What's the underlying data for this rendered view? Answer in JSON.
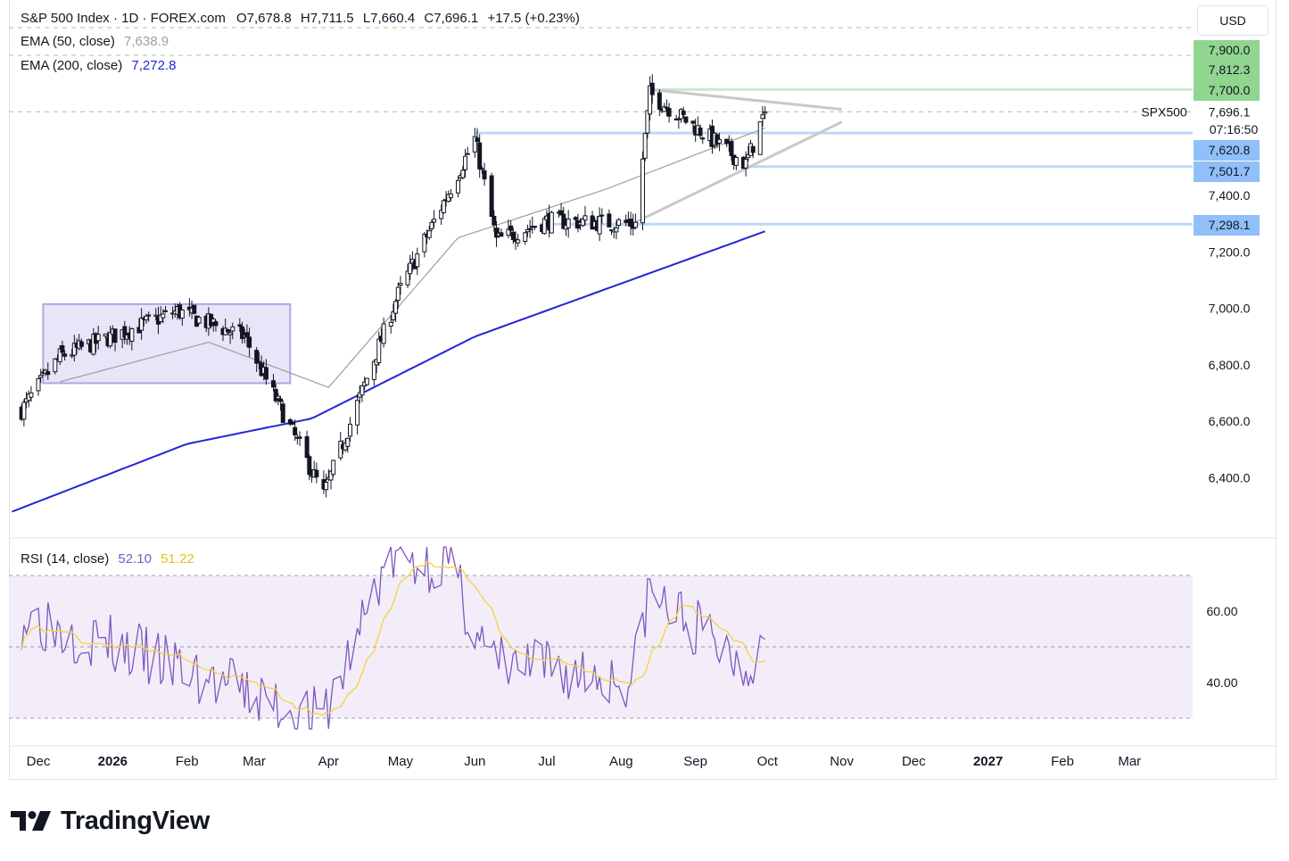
{
  "header": {
    "symbol": "S&P 500 Index · 1D · FOREX.com",
    "open": "O7,678.8",
    "high": "H7,711.5",
    "low": "L7,660.4",
    "close": "C7,696.1",
    "change": "+17.5 (+0.23%)",
    "ema50_label": "EMA (50, close)",
    "ema50_value": "7,638.9",
    "ema200_label": "EMA (200, close)",
    "ema200_value": "7,272.8",
    "rsi_label": "RSI (14, close)",
    "rsi_value": "52.10",
    "rsi_ma_value": "51.22",
    "currency_button": "USD"
  },
  "brand": {
    "name": "TradingView"
  },
  "colors": {
    "up": "#ffffff",
    "down": "#131722",
    "ema50": "#9e9e9e",
    "ema200": "#2424d8",
    "rsi": "#7e57c2",
    "rsi_ma": "#f5d33f",
    "resistance_tag": "#90d590",
    "support_tag": "#90bff9",
    "box": "#b2a5e6"
  },
  "chart_data": {
    "type": "candlestick",
    "x_ticks": [
      "Dec",
      "2026",
      "Feb",
      "Mar",
      "Apr",
      "May",
      "Jun",
      "Jul",
      "Aug",
      "Sep",
      "Oct",
      "Nov",
      "Dec",
      "2027",
      "Feb",
      "Mar"
    ],
    "price_ticks": [
      "7,400.0",
      "7,200.0",
      "7,000.0",
      "6,800.0",
      "6,600.0",
      "6,400.0"
    ],
    "price_axis_range": [
      6240,
      7940
    ],
    "last_price": {
      "label": "SPX500",
      "value": "7,696.1",
      "countdown": "07:16:50"
    },
    "levels": [
      {
        "value": 7900,
        "label": "7,900.0",
        "kind": "resistance"
      },
      {
        "value": 7812.3,
        "label": "7,812.3",
        "kind": "resistance"
      },
      {
        "value": 7700,
        "label": "7,700.0",
        "kind": "resistance"
      },
      {
        "value": 7620.8,
        "label": "7,620.8",
        "kind": "support"
      },
      {
        "value": 7501.7,
        "label": "7,501.7",
        "kind": "support"
      },
      {
        "value": 7298.1,
        "label": "7,298.1",
        "kind": "support"
      }
    ],
    "rsi_ticks": [
      "60.00",
      "40.00"
    ],
    "rsi_range": [
      25,
      80
    ],
    "rsi_bands": [
      70,
      50,
      30
    ],
    "key_points": [
      {
        "date": "Nov 24, 2025",
        "close": 6640
      },
      {
        "date": "Dec 10, 2025",
        "close": 6830
      },
      {
        "date": "Jan 28, 2026",
        "close": 6990
      },
      {
        "date": "Feb 25, 2026",
        "close": 6900
      },
      {
        "date": "Mar 30, 2026",
        "close": 6340
      },
      {
        "date": "Apr 30, 2026",
        "close": 7050
      },
      {
        "date": "Jun 01, 2026",
        "close": 7600
      },
      {
        "date": "Jun 10, 2026",
        "close": 7240
      },
      {
        "date": "Jul 01, 2026",
        "close": 7310
      },
      {
        "date": "Aug 07, 2026",
        "close": 7300
      },
      {
        "date": "Aug 13, 2026",
        "close": 7760
      },
      {
        "date": "Sep 22, 2026",
        "close": 7510
      },
      {
        "date": "Sep 30, 2026",
        "close": 7696.1
      }
    ],
    "ema50_points": [
      {
        "date": "Dec 10, 2025",
        "value": 6740
      },
      {
        "date": "Feb 10, 2026",
        "value": 6880
      },
      {
        "date": "Apr 01, 2026",
        "value": 6720
      },
      {
        "date": "May 25, 2026",
        "value": 7250
      },
      {
        "date": "Jul 25, 2026",
        "value": 7420
      },
      {
        "date": "Sep 30, 2026",
        "value": 7638.9
      }
    ],
    "ema200_points": [
      {
        "date": "Nov 20, 2025",
        "value": 6280
      },
      {
        "date": "Feb 01, 2026",
        "value": 6520
      },
      {
        "date": "Mar 25, 2026",
        "value": 6610
      },
      {
        "date": "Jun 01, 2026",
        "value": 6900
      },
      {
        "date": "Sep 30, 2026",
        "value": 7272.8
      }
    ],
    "rsi_points": [
      {
        "date": "Dec 01, 2025",
        "value": 58
      },
      {
        "date": "Mar 30, 2026",
        "value": 29
      },
      {
        "date": "Apr 25, 2026",
        "value": 74
      },
      {
        "date": "May 20, 2026",
        "value": 74
      },
      {
        "date": "Jun 08, 2026",
        "value": 45
      },
      {
        "date": "Aug 06, 2026",
        "value": 41
      },
      {
        "date": "Aug 12, 2026",
        "value": 65
      },
      {
        "date": "Sep 22, 2026",
        "value": 45
      },
      {
        "date": "Sep 30, 2026",
        "value": 52.1
      }
    ],
    "consolidation_box": {
      "from": "Dec 03, 2025",
      "to": "Mar 16, 2026",
      "top": 7015,
      "bottom": 6735
    },
    "triangle": {
      "upper": {
        "from": [
          "Aug 13, 2026",
          7775
        ],
        "to": [
          "Nov 01, 2026",
          7705
        ]
      },
      "lower": {
        "from": [
          "Aug 07, 2026",
          7305
        ],
        "to": [
          "Nov 01, 2026",
          7660
        ]
      }
    }
  }
}
